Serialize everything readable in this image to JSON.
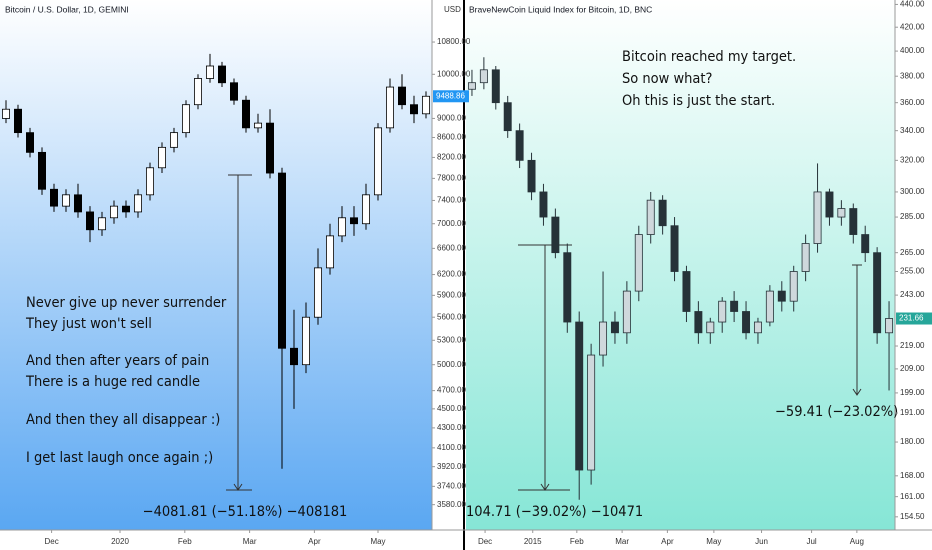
{
  "chart_data": [
    {
      "type": "candlestick",
      "title": "Bitcoin / U.S. Dollar, 1D, GEMINI",
      "quote_label": "USD",
      "price_label": "9488.86",
      "price_tag_color": "#2196f3",
      "up_color": "#ffffff",
      "down_color": "#000000",
      "wick_color": "#000000",
      "log_scale": true,
      "open": [
        9000,
        9200,
        8700,
        8300,
        7600,
        7300,
        7500,
        7200,
        6900,
        7100,
        7300,
        7200,
        7500,
        8000,
        8400,
        8700,
        9300,
        9900,
        10200,
        9800,
        9400,
        8800,
        8900,
        7900,
        5200,
        5000,
        5600,
        6300,
        6800,
        7100,
        7000,
        7500,
        8800,
        9700,
        9300,
        9100
      ],
      "high": [
        9400,
        9300,
        8800,
        8400,
        7700,
        7600,
        7700,
        7300,
        7200,
        7400,
        7400,
        7600,
        8100,
        8500,
        8800,
        9400,
        10000,
        10500,
        10300,
        9900,
        9500,
        9100,
        9200,
        8000,
        5700,
        5800,
        6600,
        7000,
        7300,
        7300,
        7700,
        8900,
        9900,
        10000,
        9500,
        9600
      ],
      "low": [
        8900,
        8600,
        8200,
        7500,
        7200,
        7200,
        7100,
        6700,
        6800,
        7000,
        7100,
        7100,
        7400,
        7900,
        8300,
        8600,
        9200,
        9800,
        9700,
        9300,
        8700,
        8700,
        7800,
        3900,
        4500,
        4900,
        5500,
        6200,
        6700,
        6800,
        6900,
        7400,
        8700,
        9200,
        8900,
        9000
      ],
      "close": [
        9200,
        8700,
        8300,
        7600,
        7300,
        7500,
        7200,
        6900,
        7100,
        7300,
        7200,
        7500,
        8000,
        8400,
        8700,
        9300,
        9900,
        10200,
        9800,
        9400,
        8800,
        8900,
        7900,
        5200,
        5000,
        5600,
        6300,
        6800,
        7100,
        7000,
        7500,
        8800,
        9700,
        9300,
        9100,
        9488.86
      ],
      "ylim": [
        3370,
        11940
      ],
      "yticks": [
        {
          "value": 10800,
          "label": "10800.00"
        },
        {
          "value": 10000,
          "label": "10000.00"
        },
        {
          "value": 9000,
          "label": "9000.00"
        },
        {
          "value": 8600,
          "label": "8600.00"
        },
        {
          "value": 8200,
          "label": "8200.00"
        },
        {
          "value": 7800,
          "label": "7800.00"
        },
        {
          "value": 7400,
          "label": "7400.00"
        },
        {
          "value": 7000,
          "label": "7000.00"
        },
        {
          "value": 6600,
          "label": "6600.00"
        },
        {
          "value": 6200,
          "label": "6200.00"
        },
        {
          "value": 5900,
          "label": "5900.00"
        },
        {
          "value": 5600,
          "label": "5600.00"
        },
        {
          "value": 5300,
          "label": "5300.00"
        },
        {
          "value": 5000,
          "label": "5000.00"
        },
        {
          "value": 4700,
          "label": "4700.00"
        },
        {
          "value": 4500,
          "label": "4500.00"
        },
        {
          "value": 4300,
          "label": "4300.00"
        },
        {
          "value": 4100,
          "label": "4100.00"
        },
        {
          "value": 3920,
          "label": "3920.00"
        },
        {
          "value": 3740,
          "label": "3740.00"
        },
        {
          "value": 3580,
          "label": "3580.00"
        }
      ],
      "xlim": [
        0,
        36
      ],
      "xticks": [
        {
          "value": 4.3,
          "label": "Dec"
        },
        {
          "value": 10,
          "label": "2020"
        },
        {
          "value": 15.4,
          "label": "Feb"
        },
        {
          "value": 20.8,
          "label": "Mar"
        },
        {
          "value": 26.2,
          "label": "Apr"
        },
        {
          "value": 31.5,
          "label": "May"
        }
      ],
      "measurement_label": "−4081.81 (−51.18%) −408181",
      "annotations": [
        "Never give up never surrender",
        "They just won't sell",
        "And then after years of pain",
        "There is a huge red candle",
        "And then they all disappear :)",
        "I get last laugh once again ;)"
      ]
    },
    {
      "type": "candlestick",
      "title": "BraveNewCoin Liquid Index for Bitcoin, 1D, BNC",
      "price_label": "231.66",
      "price_tag_color": "#26a69a",
      "up_color": "#cfd8dc",
      "down_color": "#263238",
      "wick_color": "#263238",
      "log_scale": true,
      "open": [
        370,
        375,
        385,
        360,
        340,
        320,
        300,
        285,
        265,
        230,
        170,
        215,
        230,
        225,
        245,
        275,
        295,
        280,
        255,
        235,
        225,
        230,
        240,
        235,
        225,
        230,
        245,
        240,
        255,
        270,
        300,
        285,
        290,
        275,
        265,
        225
      ],
      "high": [
        385,
        395,
        388,
        365,
        345,
        325,
        305,
        290,
        270,
        235,
        220,
        255,
        235,
        250,
        280,
        300,
        298,
        285,
        258,
        240,
        232,
        242,
        245,
        240,
        232,
        248,
        250,
        258,
        275,
        318,
        302,
        295,
        293,
        280,
        268,
        240
      ],
      "low": [
        365,
        370,
        355,
        335,
        315,
        295,
        280,
        262,
        225,
        160,
        165,
        210,
        220,
        220,
        240,
        270,
        275,
        250,
        230,
        220,
        220,
        225,
        230,
        222,
        220,
        228,
        235,
        235,
        250,
        265,
        280,
        280,
        270,
        260,
        220,
        200
      ],
      "close": [
        375,
        385,
        360,
        340,
        320,
        300,
        285,
        265,
        230,
        170,
        215,
        230,
        225,
        245,
        275,
        295,
        280,
        255,
        235,
        225,
        230,
        240,
        235,
        225,
        230,
        245,
        240,
        255,
        270,
        300,
        285,
        290,
        275,
        265,
        225,
        231.66
      ],
      "ylim": [
        150.4,
        444
      ],
      "yticks": [
        {
          "value": 440,
          "label": "440.00"
        },
        {
          "value": 420,
          "label": "420.00"
        },
        {
          "value": 400,
          "label": "400.00"
        },
        {
          "value": 380,
          "label": "380.00"
        },
        {
          "value": 360,
          "label": "360.00"
        },
        {
          "value": 340,
          "label": "340.00"
        },
        {
          "value": 320,
          "label": "320.00"
        },
        {
          "value": 300,
          "label": "300.00"
        },
        {
          "value": 285,
          "label": "285.00"
        },
        {
          "value": 265,
          "label": "265.00"
        },
        {
          "value": 255,
          "label": "255.00"
        },
        {
          "value": 243,
          "label": "243.00"
        },
        {
          "value": 219,
          "label": "219.00"
        },
        {
          "value": 209,
          "label": "209.00"
        },
        {
          "value": 199,
          "label": "199.00"
        },
        {
          "value": 191,
          "label": "191.00"
        },
        {
          "value": 180,
          "label": "180.00"
        },
        {
          "value": 168,
          "label": "168.00"
        },
        {
          "value": 161,
          "label": "161.00"
        },
        {
          "value": 154.5,
          "label": "154.50"
        }
      ],
      "xlim": [
        0,
        36
      ],
      "xticks": [
        {
          "value": 1.6,
          "label": "Dec"
        },
        {
          "value": 5.6,
          "label": "2015"
        },
        {
          "value": 9.3,
          "label": "Feb"
        },
        {
          "value": 13.1,
          "label": "Mar"
        },
        {
          "value": 16.9,
          "label": "Apr"
        },
        {
          "value": 20.8,
          "label": "May"
        },
        {
          "value": 24.8,
          "label": "Jun"
        },
        {
          "value": 29,
          "label": "Jul"
        },
        {
          "value": 32.8,
          "label": "Aug"
        }
      ],
      "measurement_label": "104.71 (−39.02%) −10471",
      "measurement_label_2": "−59.41 (−23.02%)",
      "annotations": [
        "Bitcoin reached my target.",
        "So now what?",
        "Oh this is just the start."
      ]
    }
  ]
}
